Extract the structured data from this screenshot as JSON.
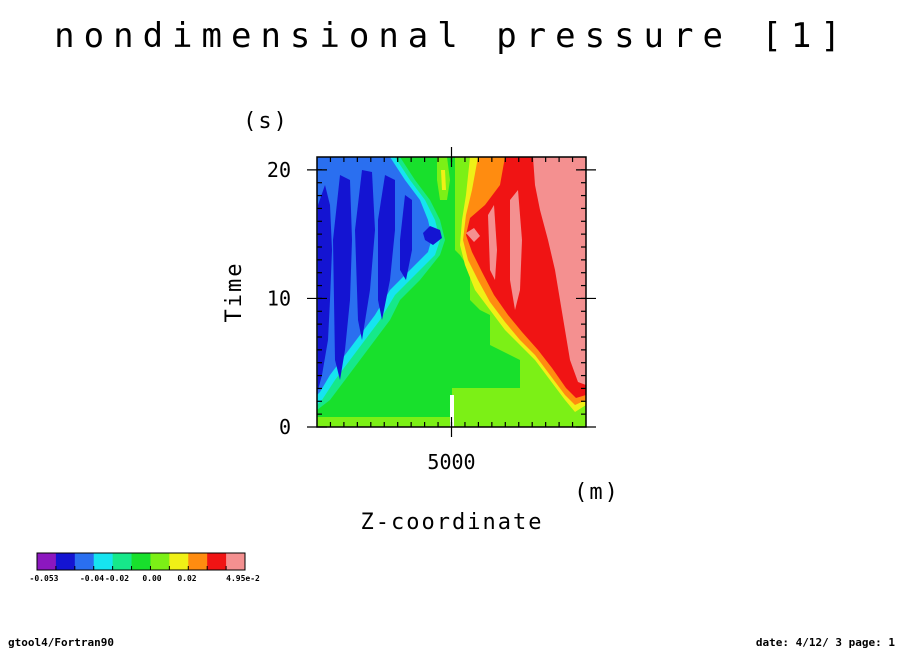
{
  "title": "nondimensional pressure [1]",
  "footer": {
    "left": "gtool4/Fortran90",
    "right": "date: 4/12/ 3 page: 1"
  },
  "chart_data": {
    "type": "heatmap",
    "title": "nondimensional pressure [1]",
    "xlabel": "Z-coordinate",
    "xunit": "(m)",
    "ylabel": "Time",
    "yunit": "(s)",
    "xlim": [
      0,
      10000
    ],
    "ylim": [
      0,
      21
    ],
    "x_ticks": [
      {
        "value": 5000,
        "label": "5000"
      }
    ],
    "y_ticks": [
      {
        "value": 0,
        "label": "0"
      },
      {
        "value": 10,
        "label": "10"
      },
      {
        "value": 20,
        "label": "20"
      }
    ],
    "colorbar": {
      "levels": [
        -0.053,
        -0.045,
        -0.04,
        -0.03,
        -0.02,
        -0.01,
        0.0,
        0.01,
        0.02,
        0.03,
        0.04,
        0.0495
      ],
      "colors": [
        "#8c17bf",
        "#1414d2",
        "#2a6ff0",
        "#16e4f0",
        "#16e88a",
        "#18e02c",
        "#7cf016",
        "#f0f016",
        "#ff8c10",
        "#f01414",
        "#f49090"
      ],
      "labels": [
        "-0.053",
        "-0.04",
        "-0.02",
        "0.00",
        "0.02",
        "4.95e-2"
      ]
    },
    "grid": false,
    "legend_position": "bottom-left"
  }
}
